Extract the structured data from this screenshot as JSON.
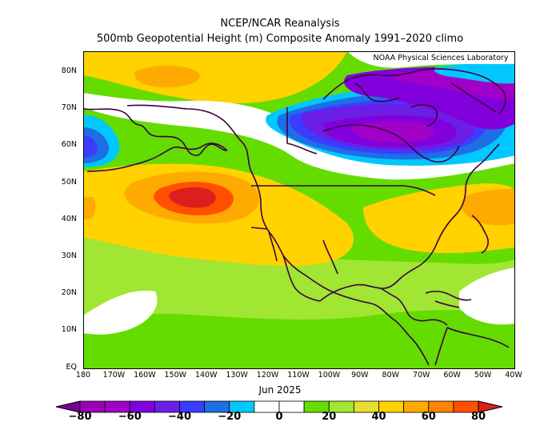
{
  "header": {
    "title_line1": "NCEP/NCAR Reanalysis",
    "title_line2": "500mb Geopotential Height (m) Composite Anomaly 1991–2020 climo",
    "credit": "NOAA Physical Sciences Laboratory"
  },
  "map": {
    "period": "Jun 2025",
    "latitude_labels": [
      "80N",
      "70N",
      "60N",
      "50N",
      "40N",
      "30N",
      "20N",
      "10N",
      "EQ"
    ],
    "longitude_labels": [
      "180",
      "170W",
      "160W",
      "150W",
      "140W",
      "130W",
      "120W",
      "110W",
      "100W",
      "90W",
      "80W",
      "70W",
      "60W",
      "50W",
      "40W"
    ],
    "features": {
      "positive_anomaly_center": "northeast Pacific, ~45N 145W",
      "negative_anomaly_center": "central Canada / Hudson Bay",
      "colors": {
        "c_n80": "#7a0096",
        "c_n70": "#9a00b4",
        "c_n60": "#a000c8",
        "c_n50": "#8200dc",
        "c_n40": "#6a1ee6",
        "c_n30": "#3c3cff",
        "c_n20": "#1e6ee6",
        "c_n10": "#00c8ff",
        "c_0": "#ffffff",
        "c_10": "#64dc00",
        "c_20": "#a0e632",
        "c_30": "#e6dc32",
        "c_40": "#ffd200",
        "c_50": "#ffaa00",
        "c_60": "#ff8200",
        "c_70": "#ff5000",
        "c_80": "#dc1e1e",
        "coast": "#3c0040"
      }
    }
  },
  "colorbar": {
    "labels": [
      "−80",
      "−60",
      "−40",
      "−20",
      "0",
      "20",
      "40",
      "60",
      "80"
    ]
  }
}
